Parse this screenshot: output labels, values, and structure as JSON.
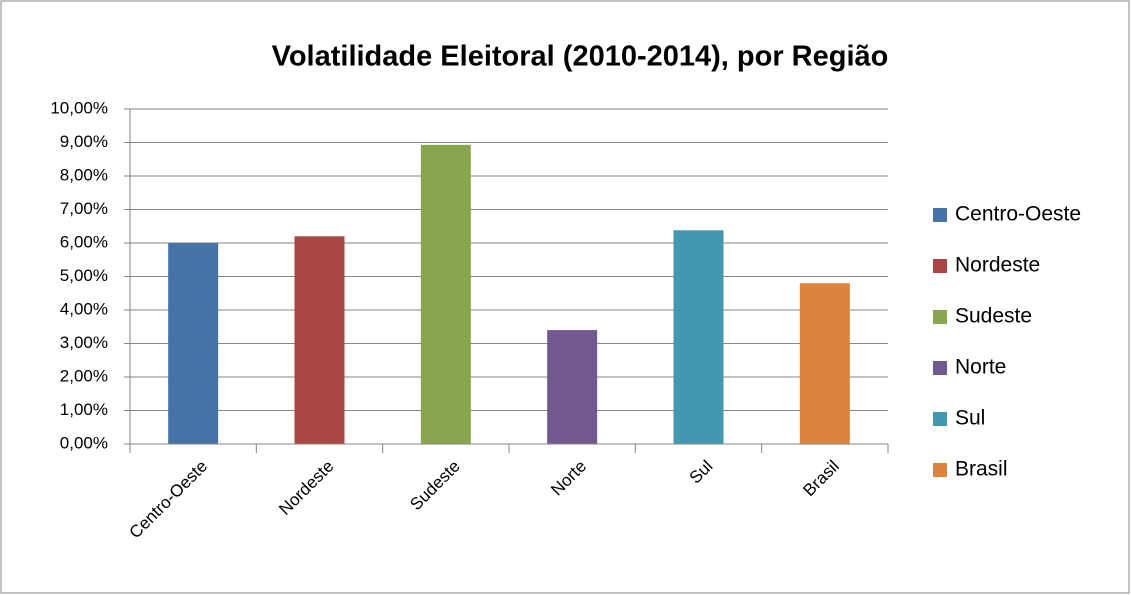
{
  "chart_data": {
    "type": "bar",
    "title": "Volatilidade Eleitoral (2010-2014), por Região",
    "categories": [
      "Centro-Oeste",
      "Nordeste",
      "Sudeste",
      "Norte",
      "Sul",
      "Brasil"
    ],
    "values": [
      6.0,
      6.2,
      8.93,
      3.4,
      6.38,
      4.8
    ],
    "colors": [
      "#4572a7",
      "#aa4643",
      "#89a54e",
      "#71588f",
      "#4198af",
      "#db843d"
    ],
    "ylim": [
      0,
      10
    ],
    "yticks": [
      {
        "value": 0,
        "label": "0,00%"
      },
      {
        "value": 1,
        "label": "1,00%"
      },
      {
        "value": 2,
        "label": "2,00%"
      },
      {
        "value": 3,
        "label": "3,00%"
      },
      {
        "value": 4,
        "label": "4,00%"
      },
      {
        "value": 5,
        "label": "5,00%"
      },
      {
        "value": 6,
        "label": "6,00%"
      },
      {
        "value": 7,
        "label": "7,00%"
      },
      {
        "value": 8,
        "label": "8,00%"
      },
      {
        "value": 9,
        "label": "9,00%"
      },
      {
        "value": 10,
        "label": "10,00%"
      }
    ],
    "grid": true,
    "legend": "right"
  }
}
